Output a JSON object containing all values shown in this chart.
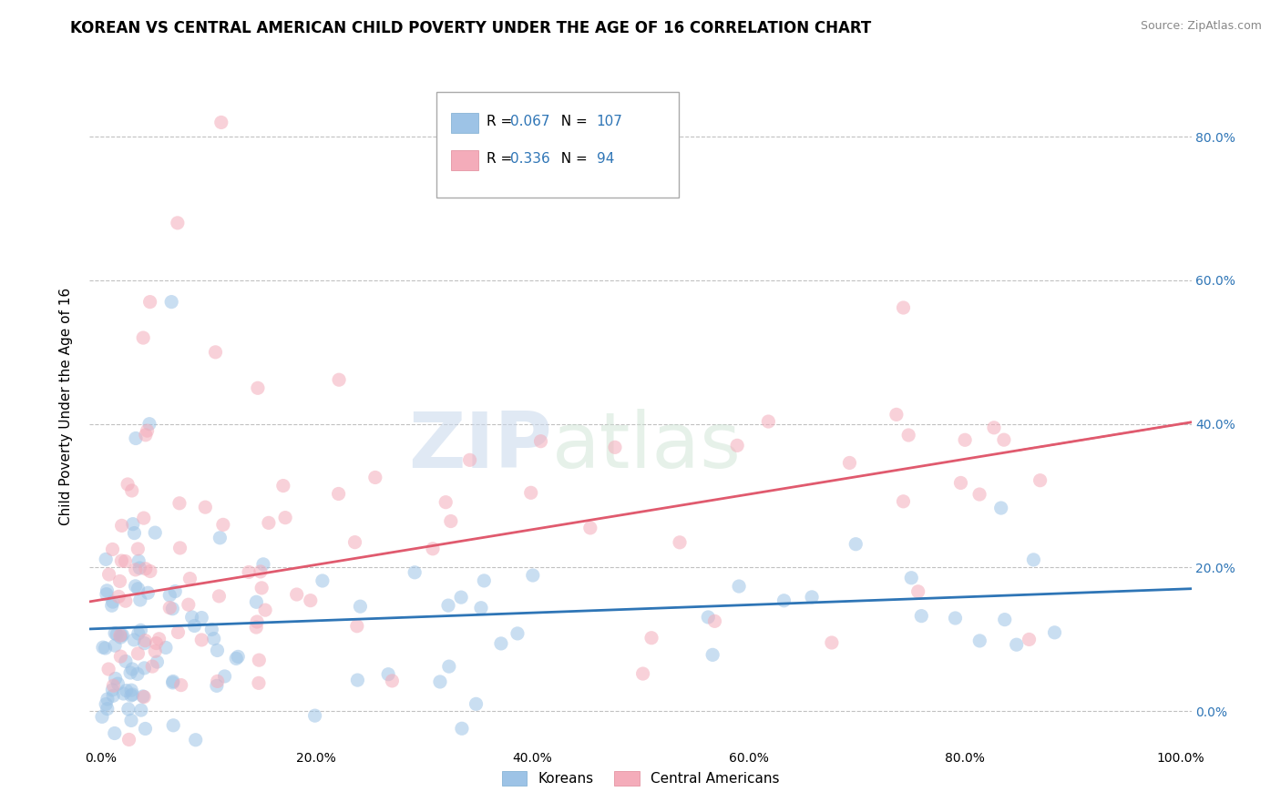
{
  "title": "KOREAN VS CENTRAL AMERICAN CHILD POVERTY UNDER THE AGE OF 16 CORRELATION CHART",
  "source": "Source: ZipAtlas.com",
  "ylabel": "Child Poverty Under the Age of 16",
  "xlim": [
    -0.01,
    1.01
  ],
  "ylim": [
    -0.05,
    0.9
  ],
  "xticks": [
    0.0,
    0.2,
    0.4,
    0.6,
    0.8,
    1.0
  ],
  "xticklabels": [
    "0.0%",
    "20.0%",
    "40.0%",
    "60.0%",
    "80.0%",
    "100.0%"
  ],
  "yticks": [
    0.0,
    0.2,
    0.4,
    0.6,
    0.8
  ],
  "yticklabels_right": [
    "0.0%",
    "20.0%",
    "40.0%",
    "60.0%",
    "80.0%"
  ],
  "korean_color": "#9DC3E6",
  "central_american_color": "#F4ACBA",
  "korean_line_color": "#2E75B6",
  "central_american_line_color": "#E05A6E",
  "background_color": "#FFFFFF",
  "grid_color": "#BBBBBB",
  "R_korean": 0.067,
  "N_korean": 107,
  "R_central": 0.336,
  "N_central": 94,
  "watermark_zip": "ZIP",
  "watermark_atlas": "atlas",
  "legend_label_korean": "Koreans",
  "legend_label_central": "Central Americans",
  "title_fontsize": 12,
  "axis_label_fontsize": 11,
  "tick_fontsize": 10,
  "source_fontsize": 9,
  "dot_size": 120,
  "dot_alpha": 0.55,
  "korean_intercept": 0.115,
  "korean_slope": 0.055,
  "central_intercept": 0.155,
  "central_slope": 0.245
}
